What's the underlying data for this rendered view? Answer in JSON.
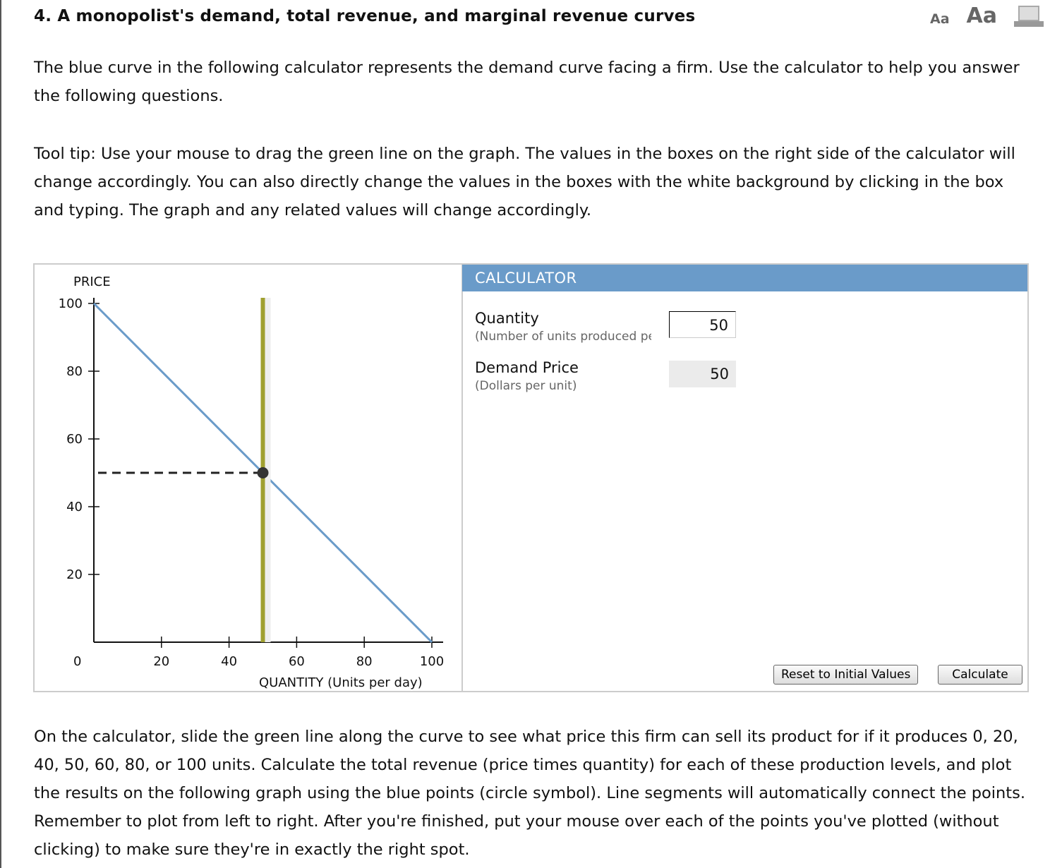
{
  "title": "4. A monopolist's demand, total revenue, and marginal revenue curves",
  "tools": {
    "small_font": "Aa",
    "large_font": "Aa",
    "print_icon": "print-icon"
  },
  "intro": "The blue curve in the following calculator represents the demand curve facing a firm. Use the calculator to help you answer the following questions.",
  "tooltip": "Tool tip: Use your mouse to drag the green line on the graph. The values in the boxes on the right side of the calculator will change accordingly. You can also directly change the values in the boxes with the white background by clicking in the box and typing. The graph and any related values will change accordingly.",
  "graph": {
    "ylabel": "PRICE",
    "xlabel": "QUANTITY (Units per day)",
    "origin_label": "0",
    "yticks": [
      "100",
      "80",
      "60",
      "40",
      "20"
    ],
    "xticks": [
      "20",
      "40",
      "60",
      "80",
      "100"
    ],
    "colors": {
      "demand": "#6a9bc9",
      "slider": "#a0a030",
      "point": "#333333"
    }
  },
  "chart_data": {
    "type": "line",
    "xlabel": "QUANTITY (Units per day)",
    "ylabel": "PRICE",
    "xlim": [
      0,
      100
    ],
    "ylim": [
      0,
      100
    ],
    "series": [
      {
        "values": [
          [
            0,
            100
          ],
          [
            100,
            0
          ]
        ]
      }
    ],
    "slider_quantity": 50,
    "selected_point": [
      50,
      50
    ]
  },
  "calculator": {
    "header": "CALCULATOR",
    "quantity_label": "Quantity",
    "quantity_sub": "(Number of units produced per day)",
    "quantity_value": "50",
    "price_label": "Demand Price",
    "price_sub": "(Dollars per unit)",
    "price_value": "50",
    "reset_label": "Reset to Initial Values",
    "calculate_label": "Calculate"
  },
  "instructions": "On the calculator, slide the green line along the curve to see what price this firm can sell its product for if it produces 0, 20, 40, 50, 60, 80, or 100 units. Calculate the total revenue (price times quantity) for each of these production levels, and plot the results on the following graph using the blue points (circle symbol). Line segments will automatically connect the points. Remember to plot from left to right. After you're finished, put your mouse over each of the points you've plotted (without clicking) to make sure they're in exactly the right spot."
}
